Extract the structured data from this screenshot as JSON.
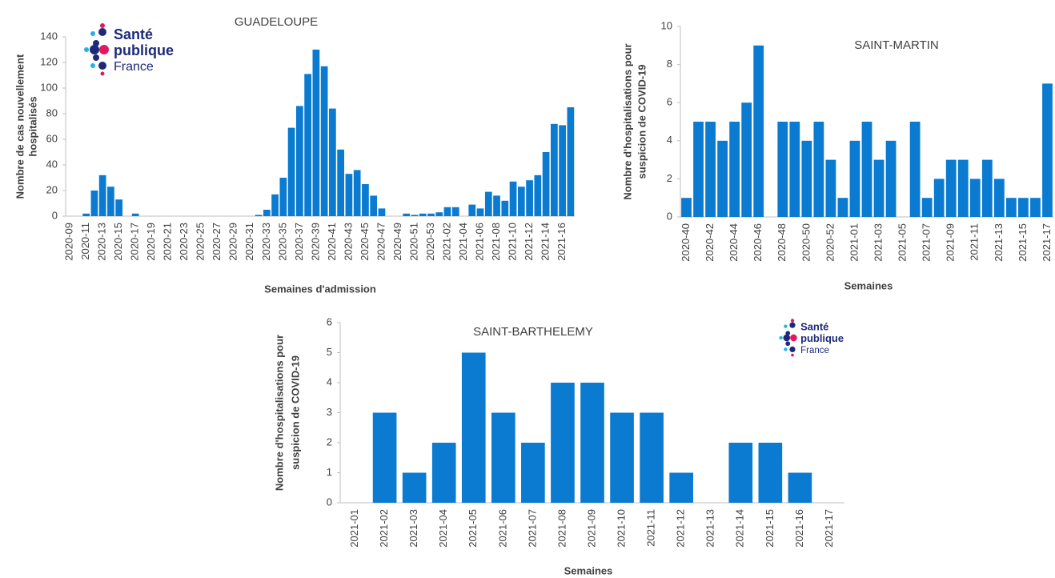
{
  "chart_data": [
    {
      "type": "bar",
      "title": "GUADELOUPE",
      "xlabel": "Semaines d'admission",
      "ylabel": [
        "Nombre de cas nouvellement",
        "hospitalisés"
      ],
      "color": "#0a7bd0",
      "categories": [
        "2020-09",
        null,
        "2020-11",
        null,
        "2020-13",
        null,
        "2020-15",
        null,
        "2020-17",
        null,
        "2020-19",
        null,
        "2020-21",
        null,
        "2020-23",
        null,
        "2020-25",
        null,
        "2020-27",
        null,
        "2020-29",
        null,
        "2020-31",
        null,
        "2020-33",
        null,
        "2020-35",
        null,
        "2020-37",
        null,
        "2020-39",
        null,
        "2020-41",
        null,
        "2020-43",
        null,
        "2020-45",
        null,
        "2020-47",
        null,
        "2020-49",
        null,
        "2020-51",
        null,
        "2020-53",
        null,
        "2021-02",
        null,
        "2021-04",
        null,
        "2021-06",
        null,
        "2021-08",
        null,
        "2021-10",
        null,
        "2021-12",
        null,
        "2021-14",
        null,
        "2021-16",
        null
      ],
      "values": [
        0,
        0,
        2,
        20,
        32,
        23,
        13,
        0,
        2,
        0,
        0,
        0,
        0,
        0,
        0,
        0,
        0,
        0,
        0,
        0,
        0,
        0,
        0,
        1,
        5,
        17,
        30,
        69,
        86,
        111,
        130,
        117,
        84,
        52,
        33,
        36,
        25,
        16,
        6,
        0,
        0,
        2,
        1,
        2,
        2,
        3,
        7,
        7,
        0,
        9,
        6,
        19,
        16,
        12,
        27,
        23,
        28,
        32,
        50,
        72,
        71,
        85
      ],
      "ylim": [
        0,
        140
      ],
      "yticks": [
        0,
        20,
        40,
        60,
        80,
        100,
        120,
        140
      ]
    },
    {
      "type": "bar",
      "title": "SAINT-MARTIN",
      "xlabel": "Semaines",
      "ylabel": [
        "Nombre d'hospitalisations pour",
        "suspicion de COVID-19"
      ],
      "color": "#0a7bd0",
      "categories": [
        "2020-40",
        null,
        "2020-42",
        null,
        "2020-44",
        null,
        "2020-46",
        null,
        "2020-48",
        null,
        "2020-50",
        null,
        "2020-52",
        null,
        "2021-01",
        null,
        "2021-03",
        null,
        "2021-05",
        null,
        "2021-07",
        null,
        "2021-09",
        null,
        "2021-11",
        null,
        "2021-13",
        null,
        "2021-15",
        null,
        "2021-17"
      ],
      "values": [
        1,
        5,
        5,
        4,
        5,
        6,
        9,
        0,
        5,
        5,
        4,
        5,
        3,
        1,
        4,
        5,
        3,
        4,
        0,
        5,
        1,
        2,
        3,
        3,
        2,
        3,
        2,
        1,
        1,
        1,
        7
      ],
      "ylim": [
        0,
        10
      ],
      "yticks": [
        0,
        2,
        4,
        6,
        8,
        10
      ]
    },
    {
      "type": "bar",
      "title": "SAINT-BARTHELEMY",
      "xlabel": "Semaines",
      "ylabel": [
        "Nombre d'hospitalisations pour",
        "suspicion de COVID-19"
      ],
      "color": "#0a7bd0",
      "categories": [
        "2021-01",
        "2021-02",
        "2021-03",
        "2021-04",
        "2021-05",
        "2021-06",
        "2021-07",
        "2021-08",
        "2021-09",
        "2021-10",
        "2021-11",
        "2021-12",
        "2021-13",
        "2021-14",
        "2021-15",
        "2021-16",
        "2021-17"
      ],
      "values": [
        0,
        3,
        1,
        2,
        5,
        3,
        2,
        4,
        4,
        3,
        3,
        1,
        0,
        2,
        2,
        1,
        0
      ],
      "ylim": [
        0,
        6
      ],
      "yticks": [
        0,
        1,
        2,
        3,
        4,
        5,
        6
      ]
    }
  ],
  "logos": [
    [
      "Santé",
      "publique",
      "France"
    ],
    [
      "Santé",
      "publique",
      "France"
    ]
  ]
}
